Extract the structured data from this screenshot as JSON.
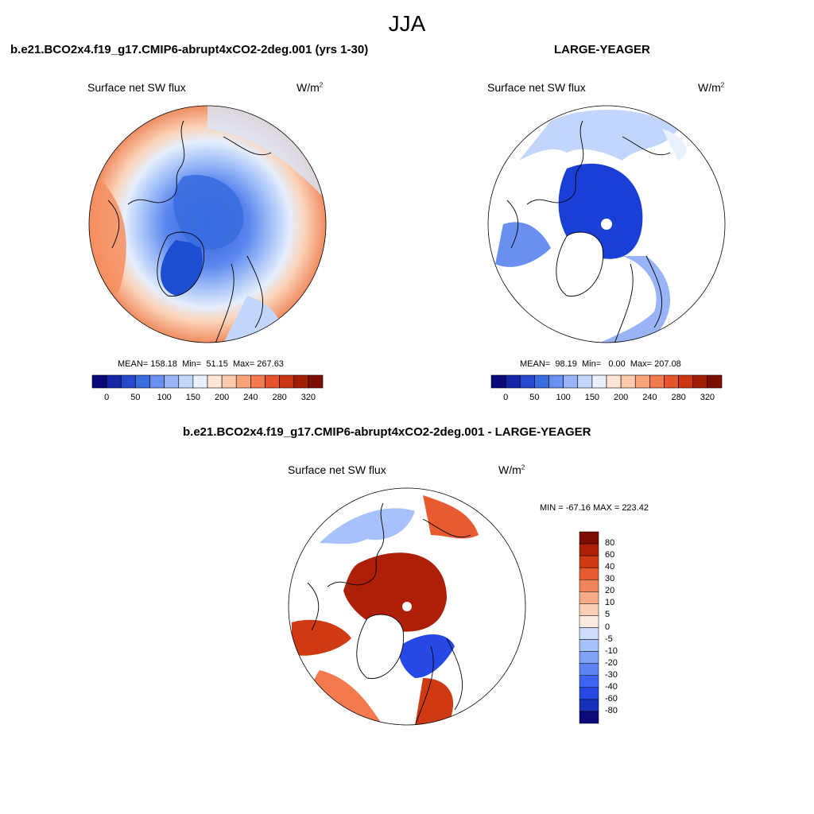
{
  "figure_title": "JJA",
  "palette": {
    "sequential": [
      "#0a0a78",
      "#1626a6",
      "#2548cc",
      "#3a6de0",
      "#6990f0",
      "#98b4f6",
      "#c2d6fb",
      "#e9f1fd",
      "#fde6d5",
      "#fbc9ab",
      "#f8a27a",
      "#f27a4e",
      "#e5542a",
      "#c93510",
      "#a11e06",
      "#7c0d00"
    ],
    "diverging": [
      "#0a0a78",
      "#1630b8",
      "#2649e6",
      "#3d63f2",
      "#5c84f5",
      "#7fa2f7",
      "#a7c2fa",
      "#cfddfd",
      "#fdebe0",
      "#fbcfb5",
      "#f8aa86",
      "#f2835a",
      "#e85b30",
      "#cf3a12",
      "#ad2007",
      "#7c0d00"
    ]
  },
  "chart_data": [
    {
      "type": "heatmap",
      "projection": "north polar stereographic",
      "title": "b.e21.BCO2x4.f19_g17.CMIP6-abrupt4xCO2-2deg.001 (yrs 1-30)",
      "left_label": "Surface net SW flux",
      "units": "W/m",
      "units_exp": "2",
      "stats": {
        "mean_label": "MEAN=",
        "mean": "158.18",
        "min_label": "Min=",
        "min": "51.15",
        "max_label": "Max=",
        "max": "267.63"
      },
      "colorbar": {
        "orientation": "horizontal",
        "levels": [
          0,
          50,
          100,
          150,
          200,
          240,
          280,
          320
        ],
        "tick_labels": [
          "0",
          "50",
          "100",
          "150",
          "200",
          "240",
          "280",
          "320"
        ],
        "range": [
          0,
          320
        ]
      }
    },
    {
      "type": "heatmap",
      "projection": "north polar stereographic",
      "title": "LARGE-YEAGER",
      "left_label": "Surface net SW flux",
      "units": "W/m",
      "units_exp": "2",
      "stats": {
        "mean_label": "MEAN=",
        "mean": "98.19",
        "min_label": "Min=",
        "min": "0.00",
        "max_label": "Max=",
        "max": "207.08"
      },
      "colorbar": {
        "orientation": "horizontal",
        "levels": [
          0,
          50,
          100,
          150,
          200,
          240,
          280,
          320
        ],
        "tick_labels": [
          "0",
          "50",
          "100",
          "150",
          "200",
          "240",
          "280",
          "320"
        ],
        "range": [
          0,
          320
        ]
      }
    },
    {
      "type": "heatmap",
      "projection": "north polar stereographic",
      "title": "b.e21.BCO2x4.f19_g17.CMIP6-abrupt4xCO2-2deg.001 - LARGE-YEAGER",
      "left_label": "Surface net SW flux",
      "units": "W/m",
      "units_exp": "2",
      "stats": {
        "text": "MIN = -67.16 MAX = 223.42"
      },
      "colorbar": {
        "orientation": "vertical",
        "tick_labels": [
          "80",
          "60",
          "40",
          "30",
          "20",
          "10",
          "5",
          "0",
          "-5",
          "-10",
          "-20",
          "-30",
          "-40",
          "-60",
          "-80"
        ]
      }
    }
  ]
}
